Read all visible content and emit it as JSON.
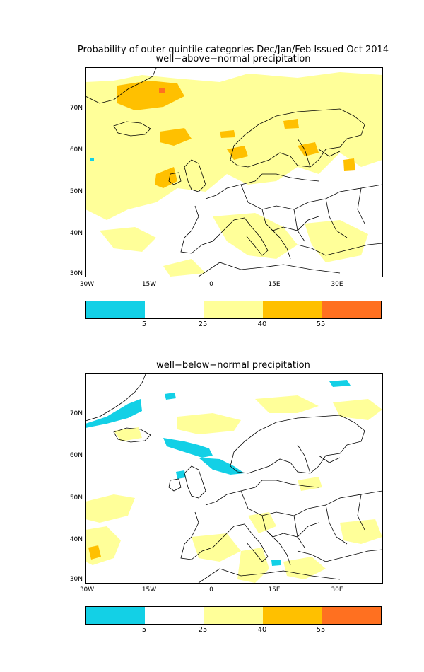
{
  "header": {
    "main_title": "Probability of outer quintile categories Dec/Jan/Feb Issued Oct 2014"
  },
  "panels": [
    {
      "subtitle": "well−above−normal precipitation",
      "lat_labels": [
        "70N",
        "60N",
        "50N",
        "40N",
        "30N"
      ],
      "lon_labels": [
        "30W",
        "15W",
        "0",
        "15E",
        "30E"
      ]
    },
    {
      "subtitle": "well−below−normal precipitation",
      "lat_labels": [
        "70N",
        "60N",
        "50N",
        "40N",
        "30N"
      ],
      "lon_labels": [
        "30W",
        "15W",
        "0",
        "15E",
        "30E"
      ]
    }
  ],
  "colorbar": {
    "ticks": [
      "5",
      "25",
      "40",
      "55"
    ],
    "colors": [
      "#13d0e6",
      "#ffffff",
      "#ffff99",
      "#ffc000",
      "#ff7020"
    ]
  },
  "colors": {
    "cyan": "#13d0e6",
    "light_yellow": "#ffff99",
    "orange": "#ffc000",
    "dark_orange": "#ff7020",
    "coast": "#000000"
  }
}
